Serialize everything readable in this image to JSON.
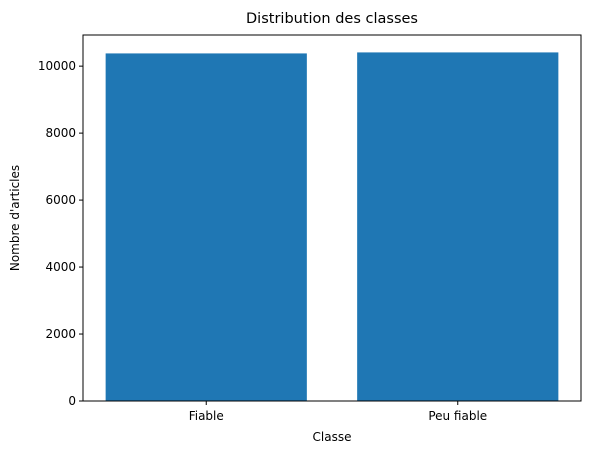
{
  "chart_data": {
    "type": "bar",
    "title": "Distribution des classes",
    "xlabel": "Classe",
    "ylabel": "Nombre d'articles",
    "categories": [
      "Fiable",
      "Peu fiable"
    ],
    "values": [
      10380,
      10410
    ],
    "ylim": [
      0,
      10930
    ],
    "yticks": [
      0,
      2000,
      4000,
      6000,
      8000,
      10000
    ],
    "bar_color": "#1f77b4",
    "grid": false,
    "legend": "none"
  }
}
